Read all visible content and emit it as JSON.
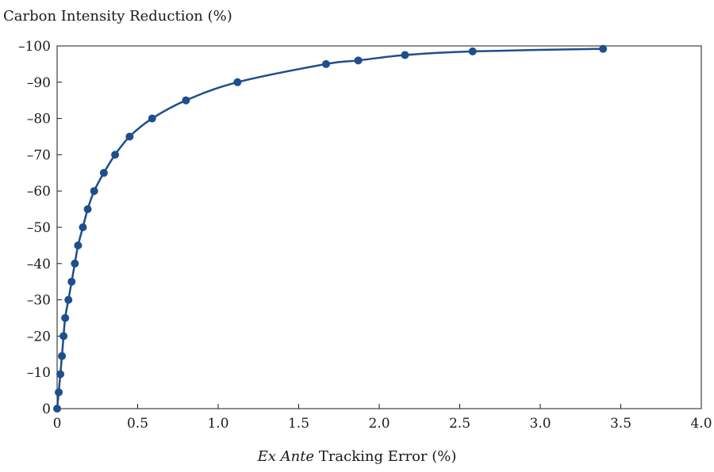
{
  "chart_data": {
    "type": "line",
    "ylabel": "Carbon Intensity Reduction (%)",
    "xlabel_italic": "Ex Ante",
    "xlabel_rest": " Tracking Error (%)",
    "xlim": [
      0,
      4.0
    ],
    "ylim": [
      0,
      -100
    ],
    "x_ticks": [
      "0",
      "0.5",
      "1.0",
      "1.5",
      "2.0",
      "2.5",
      "3.0",
      "3.5",
      "4.0"
    ],
    "y_ticks": [
      "0",
      "–10",
      "–20",
      "–30",
      "–40",
      "–50",
      "–60",
      "–70",
      "–80",
      "–90",
      "–100"
    ],
    "grid": false,
    "legend": "none",
    "series_color": "#1f4e8c",
    "series": [
      {
        "x": [
          0.0,
          0.01,
          0.02,
          0.03,
          0.04,
          0.05,
          0.07,
          0.09,
          0.11,
          0.13,
          0.16,
          0.19,
          0.23,
          0.29,
          0.36,
          0.45,
          0.59,
          0.8,
          1.12,
          1.67,
          1.87,
          2.16,
          2.58,
          3.39
        ],
        "y": [
          0,
          -4.5,
          -9.5,
          -14.5,
          -20,
          -25,
          -30,
          -35,
          -40,
          -45,
          -50,
          -55,
          -60,
          -65,
          -70,
          -75,
          -80,
          -85,
          -90,
          -95,
          -96,
          -97.5,
          -98.5,
          -99.2
        ]
      }
    ]
  }
}
